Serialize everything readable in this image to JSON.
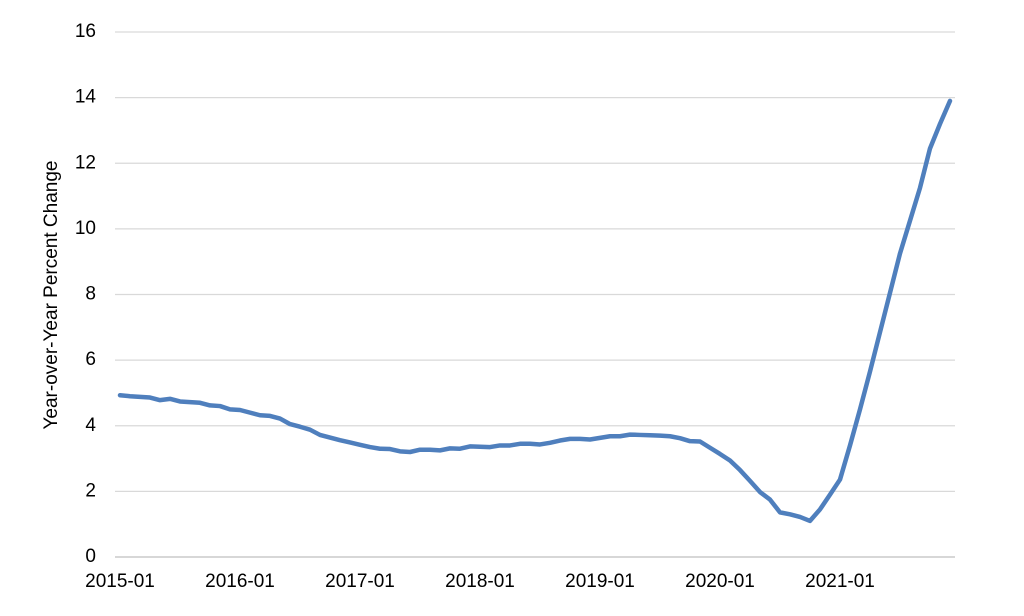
{
  "chart_data": {
    "type": "line",
    "y_label": "Year-over-Year Percent Change",
    "x": [
      "2015-01",
      "2015-02",
      "2015-03",
      "2015-04",
      "2015-05",
      "2015-06",
      "2015-07",
      "2015-08",
      "2015-09",
      "2015-10",
      "2015-11",
      "2015-12",
      "2016-01",
      "2016-02",
      "2016-03",
      "2016-04",
      "2016-05",
      "2016-06",
      "2016-07",
      "2016-08",
      "2016-09",
      "2016-10",
      "2016-11",
      "2016-12",
      "2017-01",
      "2017-02",
      "2017-03",
      "2017-04",
      "2017-05",
      "2017-06",
      "2017-07",
      "2017-08",
      "2017-09",
      "2017-10",
      "2017-11",
      "2017-12",
      "2018-01",
      "2018-02",
      "2018-03",
      "2018-04",
      "2018-05",
      "2018-06",
      "2018-07",
      "2018-08",
      "2018-09",
      "2018-10",
      "2018-11",
      "2018-12",
      "2019-01",
      "2019-02",
      "2019-03",
      "2019-04",
      "2019-05",
      "2019-06",
      "2019-07",
      "2019-08",
      "2019-09",
      "2019-10",
      "2019-11",
      "2019-12",
      "2020-01",
      "2020-02",
      "2020-03",
      "2020-04",
      "2020-05",
      "2020-06",
      "2020-07",
      "2020-08",
      "2020-09",
      "2020-10",
      "2020-11",
      "2020-12",
      "2021-01",
      "2021-02",
      "2021-03",
      "2021-04",
      "2021-05",
      "2021-06",
      "2021-07",
      "2021-08",
      "2021-09",
      "2021-10",
      "2021-11",
      "2021-12"
    ],
    "series": [
      {
        "color": "#4f7fbd",
        "values": [
          4.93,
          4.9,
          4.88,
          4.86,
          4.78,
          4.82,
          4.74,
          4.72,
          4.7,
          4.62,
          4.6,
          4.5,
          4.48,
          4.4,
          4.32,
          4.3,
          4.22,
          4.05,
          3.97,
          3.88,
          3.72,
          3.64,
          3.56,
          3.49,
          3.42,
          3.35,
          3.3,
          3.29,
          3.22,
          3.2,
          3.27,
          3.27,
          3.25,
          3.31,
          3.3,
          3.37,
          3.36,
          3.35,
          3.4,
          3.4,
          3.45,
          3.45,
          3.43,
          3.48,
          3.55,
          3.6,
          3.6,
          3.58,
          3.63,
          3.68,
          3.68,
          3.73,
          3.72,
          3.71,
          3.7,
          3.68,
          3.62,
          3.53,
          3.52,
          3.33,
          3.14,
          2.94,
          2.65,
          2.32,
          1.98,
          1.75,
          1.36,
          1.3,
          1.22,
          1.1,
          1.45,
          1.9,
          2.36,
          3.4,
          4.5,
          5.65,
          6.85,
          8.05,
          9.25,
          10.25,
          11.25,
          12.45,
          13.2,
          13.9
        ]
      }
    ],
    "xticks": [
      "2015-01",
      "2016-01",
      "2017-01",
      "2018-01",
      "2019-01",
      "2020-01",
      "2021-01"
    ],
    "ylim": [
      0,
      16
    ],
    "yticks": [
      0,
      2,
      4,
      6,
      8,
      10,
      12,
      14,
      16
    ],
    "grid": true
  }
}
